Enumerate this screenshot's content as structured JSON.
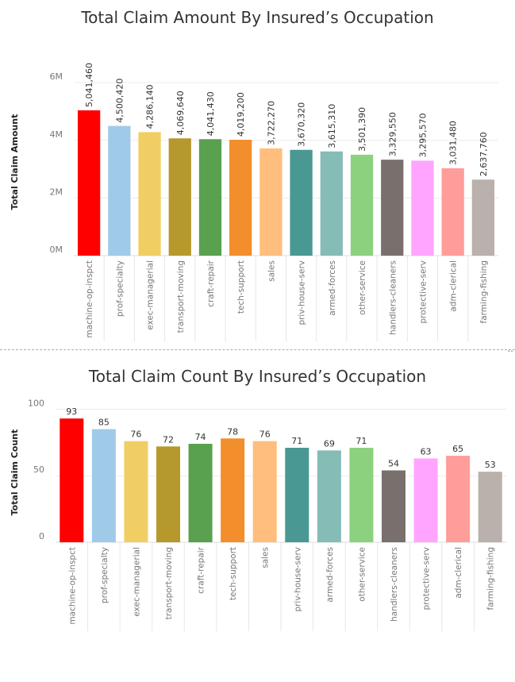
{
  "chart_data": [
    {
      "type": "bar",
      "title": "Total Claim Amount By Insured’s Occupation",
      "xlabel": "",
      "ylabel": "Total Claim Amount",
      "ylim": [
        0,
        6500000
      ],
      "yticks": [
        0,
        2000000,
        4000000,
        6000000
      ],
      "ytick_labels": [
        "0M",
        "2M",
        "4M",
        "6M"
      ],
      "grid": true,
      "categories": [
        "machine-op-inspct",
        "prof-specialty",
        "exec-managerial",
        "transport-moving",
        "craft-repair",
        "tech-support",
        "sales",
        "priv-house-serv",
        "armed-forces",
        "other-service",
        "handlers-cleaners",
        "protective-serv",
        "adm-clerical",
        "farming-fishing"
      ],
      "values": [
        5041460,
        4500420,
        4286140,
        4069640,
        4041430,
        4019200,
        3722270,
        3670320,
        3615310,
        3501390,
        3329550,
        3295570,
        3031480,
        2637760
      ],
      "value_labels": [
        "5,041,460",
        "4,500,420",
        "4,286,140",
        "4,069,640",
        "4,041,430",
        "4,019,200",
        "3,722,270",
        "3,670,320",
        "3,615,310",
        "3,501,390",
        "3,329,550",
        "3,295,570",
        "3,031,480",
        "2,637,760"
      ],
      "colors": [
        "#ff0000",
        "#a0cbe8",
        "#f1ce63",
        "#b6992d",
        "#59a14f",
        "#f28e2b",
        "#ffbe7d",
        "#499894",
        "#86bcb6",
        "#8cd17d",
        "#79706e",
        "#ffa5ff",
        "#ff9d9a",
        "#bab0ac"
      ]
    },
    {
      "type": "bar",
      "title": "Total Claim Count By Insured’s Occupation",
      "xlabel": "",
      "ylabel": "Total Claim Count",
      "ylim": [
        0,
        105
      ],
      "yticks": [
        0,
        50,
        100
      ],
      "ytick_labels": [
        "0",
        "50",
        "100"
      ],
      "grid": true,
      "categories": [
        "machine-op-inspct",
        "prof-specialty",
        "exec-managerial",
        "transport-moving",
        "craft-repair",
        "tech-support",
        "sales",
        "priv-house-serv",
        "armed-forces",
        "other-service",
        "handlers-cleaners",
        "protective-serv",
        "adm-clerical",
        "farming-fishing"
      ],
      "values": [
        93,
        85,
        76,
        72,
        74,
        78,
        76,
        71,
        69,
        71,
        54,
        63,
        65,
        53
      ],
      "value_labels": [
        "93",
        "85",
        "76",
        "72",
        "74",
        "78",
        "76",
        "71",
        "69",
        "71",
        "54",
        "63",
        "65",
        "53"
      ],
      "colors": [
        "#ff0000",
        "#a0cbe8",
        "#f1ce63",
        "#b6992d",
        "#59a14f",
        "#f28e2b",
        "#ffbe7d",
        "#499894",
        "#86bcb6",
        "#8cd17d",
        "#79706e",
        "#ffa5ff",
        "#ff9d9a",
        "#bab0ac"
      ]
    }
  ]
}
